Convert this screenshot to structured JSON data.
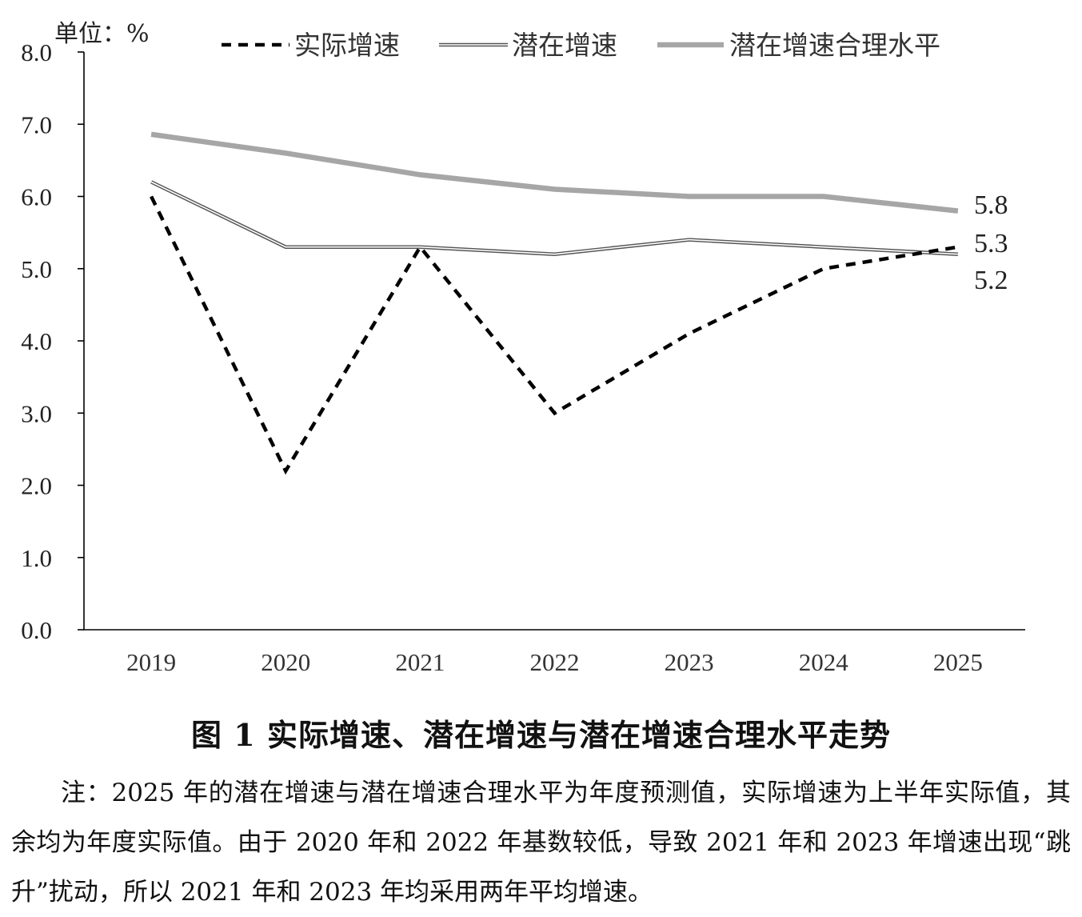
{
  "chart_data": {
    "type": "line",
    "unit_label": "单位：%",
    "categories": [
      "2019",
      "2020",
      "2021",
      "2022",
      "2023",
      "2024",
      "2025"
    ],
    "ylim": [
      0,
      8
    ],
    "yticks": [
      "0.0",
      "1.0",
      "2.0",
      "3.0",
      "4.0",
      "5.0",
      "6.0",
      "7.0",
      "8.0"
    ],
    "grid": false,
    "legend_position": "top",
    "series": [
      {
        "name": "实际增速",
        "values": [
          6.0,
          2.2,
          5.3,
          3.0,
          4.1,
          5.0,
          5.3
        ],
        "style": "dashed",
        "color": "#000000"
      },
      {
        "name": "潜在增速",
        "values": [
          6.2,
          5.3,
          5.3,
          5.2,
          5.4,
          5.3,
          5.2
        ],
        "style": "double",
        "color": "#555555"
      },
      {
        "name": "潜在增速合理水平",
        "values": [
          6.86,
          6.6,
          6.3,
          6.1,
          6.0,
          6.0,
          5.8
        ],
        "style": "thick",
        "color": "#a6a6a6"
      }
    ],
    "end_labels": [
      "5.8",
      "5.3",
      "5.2"
    ]
  },
  "caption": "图 1  实际增速、潜在增速与潜在增速合理水平走势",
  "note": "注：2025 年的潜在增速与潜在增速合理水平为年度预测值，实际增速为上半年实际值，其余均为年度实际值。由于 2020 年和 2022 年基数较低，导致 2021 年和 2023 年增速出现“跳升”扰动，所以 2021 年和 2023 年均采用两年平均增速。"
}
